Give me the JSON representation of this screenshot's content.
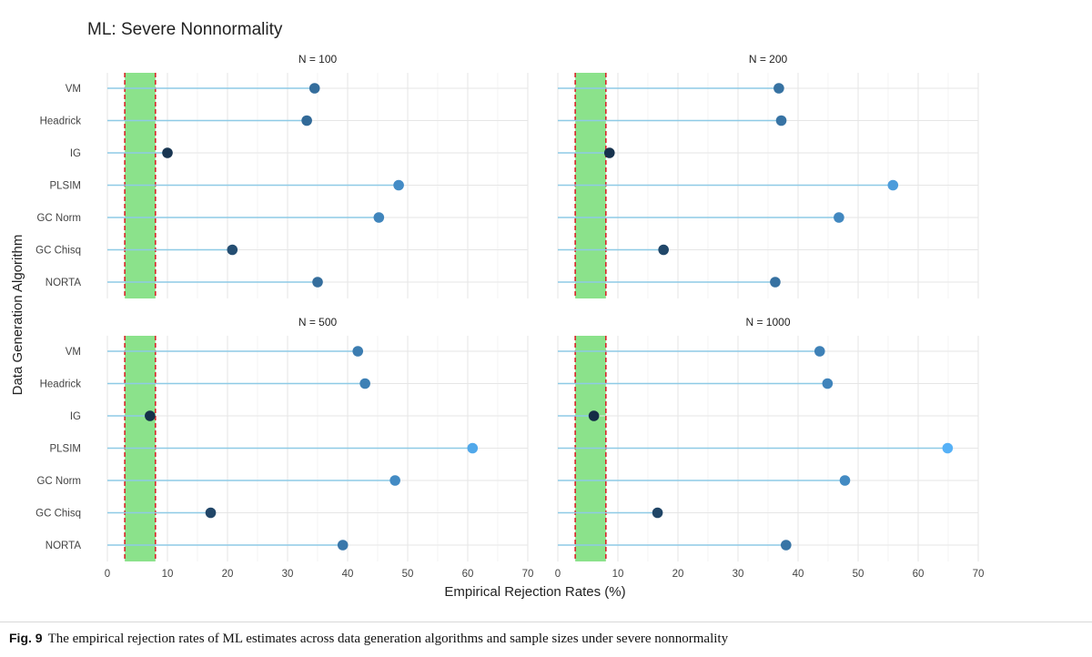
{
  "chart_title": "ML: Severe Nonnormality",
  "caption": {
    "label": "Fig. 9",
    "text": "The empirical rejection rates of ML estimates across data generation algorithms and sample sizes under severe nonnormality"
  },
  "chart_data": {
    "type": "scatter",
    "subtype": "lollipop",
    "title": "ML: Severe Nonnormality",
    "xlabel": "Empirical Rejection Rates (%)",
    "ylabel": "Data Generation Algorithm",
    "xlim": [
      0,
      70
    ],
    "xticks": [
      0,
      10,
      20,
      30,
      40,
      50,
      60,
      70
    ],
    "categories": [
      "VM",
      "Headrick",
      "IG",
      "PLSIM",
      "GC Norm",
      "GC Chisq",
      "NORTA"
    ],
    "reference_band": {
      "from": 2.9,
      "to": 8,
      "color": "#8be28b"
    },
    "reference_lines": [
      2.9,
      8
    ],
    "reference_line_color": "#d62728",
    "stem_color": "#8ecae6",
    "point_color_scale": {
      "low": "#132b43",
      "high": "#56b1f7",
      "domain": [
        5,
        65
      ]
    },
    "grid": true,
    "panels": [
      {
        "label": "N = 100",
        "values": [
          34.5,
          33.2,
          10.0,
          48.5,
          45.2,
          20.8,
          35.0
        ]
      },
      {
        "label": "N = 200",
        "values": [
          36.8,
          37.2,
          8.6,
          55.8,
          46.8,
          17.6,
          36.2
        ]
      },
      {
        "label": "N = 500",
        "values": [
          41.7,
          42.9,
          7.1,
          60.8,
          47.9,
          17.2,
          39.2
        ]
      },
      {
        "label": "N = 1000",
        "values": [
          43.6,
          44.9,
          6.0,
          64.9,
          47.8,
          16.6,
          38.0
        ]
      }
    ]
  }
}
